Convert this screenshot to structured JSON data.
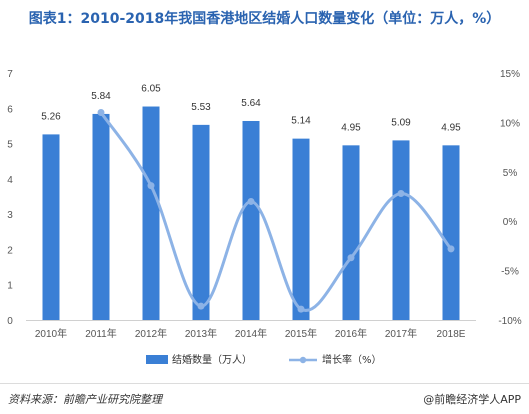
{
  "title": "图表1：2010-2018年我国香港地区结婚人口数量变化（单位：万人，%）",
  "footer": {
    "source": "资料来源：前瞻产业研究院整理",
    "brand": "@前瞻经济学人APP"
  },
  "colors": {
    "bar": "#3a7fd5",
    "line": "#8db3e6"
  },
  "chart_data": {
    "type": "bar",
    "title": "图表1：2010-2018年我国香港地区结婚人口数量变化（单位：万人，%）",
    "categories": [
      "2010年",
      "2011年",
      "2012年",
      "2013年",
      "2014年",
      "2015年",
      "2016年",
      "2017年",
      "2018E"
    ],
    "series": [
      {
        "name": "结婚数量（万人）",
        "type": "bar",
        "axis": "left",
        "values": [
          5.26,
          5.84,
          6.05,
          5.53,
          5.64,
          5.14,
          4.95,
          5.09,
          4.95
        ]
      },
      {
        "name": "增长率（%）",
        "type": "line",
        "axis": "right",
        "smooth": true,
        "values": [
          null,
          11.0,
          3.6,
          -8.6,
          2.0,
          -8.9,
          -3.7,
          2.8,
          -2.8
        ]
      }
    ],
    "ylim_left": [
      0,
      7
    ],
    "yticks_left": [
      "0",
      "1",
      "2",
      "3",
      "4",
      "5",
      "6",
      "7"
    ],
    "ylim_right": [
      -10,
      15
    ],
    "yticks_right": [
      "-10%",
      "-5%",
      "0%",
      "5%",
      "10%",
      "15%"
    ],
    "data_labels": [
      "5.26",
      "5.84",
      "6.05",
      "5.53",
      "5.64",
      "5.14",
      "4.95",
      "5.09",
      "4.95"
    ],
    "legend_position": "bottom",
    "grid": false
  }
}
